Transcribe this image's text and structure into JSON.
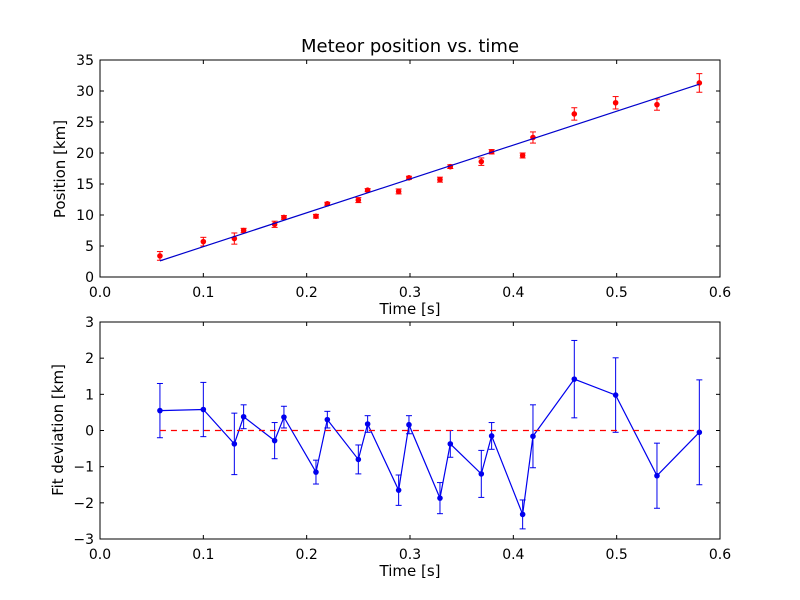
{
  "chart_data": [
    {
      "type": "scatter",
      "title": "Meteor position vs. time",
      "xlabel": "Time [s]",
      "ylabel": "Position [km]",
      "xlim": [
        0.0,
        0.6
      ],
      "ylim": [
        0,
        35
      ],
      "xticks": [
        0.0,
        0.1,
        0.2,
        0.3,
        0.4,
        0.5,
        0.6
      ],
      "xtick_labels": [
        "0.0",
        "0.1",
        "0.2",
        "0.3",
        "0.4",
        "0.5",
        "0.6"
      ],
      "yticks": [
        0,
        5,
        10,
        15,
        20,
        25,
        30,
        35
      ],
      "ytick_labels": [
        "0",
        "5",
        "10",
        "15",
        "20",
        "25",
        "30",
        "35"
      ],
      "grid": false,
      "series": [
        {
          "kind": "errorbar-points",
          "color": "#ff0000",
          "x": [
            0.058,
            0.1,
            0.13,
            0.139,
            0.169,
            0.178,
            0.209,
            0.22,
            0.25,
            0.259,
            0.289,
            0.299,
            0.329,
            0.339,
            0.369,
            0.379,
            0.409,
            0.419,
            0.459,
            0.499,
            0.539,
            0.58
          ],
          "y": [
            3.4,
            5.7,
            6.2,
            7.5,
            8.5,
            9.6,
            9.8,
            11.8,
            12.4,
            14.0,
            13.8,
            16.0,
            15.7,
            17.8,
            18.6,
            20.2,
            19.6,
            22.5,
            26.3,
            28.1,
            27.8,
            31.3
          ],
          "yerr": [
            0.7,
            0.7,
            0.9,
            0.35,
            0.5,
            0.3,
            0.3,
            0.25,
            0.4,
            0.25,
            0.4,
            0.25,
            0.4,
            0.3,
            0.6,
            0.35,
            0.4,
            0.9,
            1.0,
            1.0,
            0.9,
            1.5
          ]
        },
        {
          "kind": "line",
          "color": "#0000cc",
          "x": [
            0.058,
            0.58
          ],
          "y": [
            2.6,
            31.1
          ]
        }
      ]
    },
    {
      "type": "line",
      "title": "",
      "xlabel": "Time [s]",
      "ylabel": "Fit deviation [km]",
      "xlim": [
        0.0,
        0.6
      ],
      "ylim": [
        -3,
        3
      ],
      "xticks": [
        0.0,
        0.1,
        0.2,
        0.3,
        0.4,
        0.5,
        0.6
      ],
      "xtick_labels": [
        "0.0",
        "0.1",
        "0.2",
        "0.3",
        "0.4",
        "0.5",
        "0.6"
      ],
      "yticks": [
        -3,
        -2,
        -1,
        0,
        1,
        2,
        3
      ],
      "ytick_labels": [
        "−3",
        "−2",
        "−1",
        "0",
        "1",
        "2",
        "3"
      ],
      "grid": false,
      "series": [
        {
          "kind": "errorbar-line",
          "color": "#0000ee",
          "x": [
            0.058,
            0.1,
            0.13,
            0.139,
            0.169,
            0.178,
            0.209,
            0.22,
            0.25,
            0.259,
            0.289,
            0.299,
            0.329,
            0.339,
            0.369,
            0.379,
            0.409,
            0.419,
            0.459,
            0.499,
            0.539,
            0.58
          ],
          "y": [
            0.55,
            0.58,
            -0.37,
            0.38,
            -0.28,
            0.37,
            -1.15,
            0.3,
            -0.8,
            0.18,
            -1.65,
            0.16,
            -1.87,
            -0.37,
            -1.2,
            -0.15,
            -2.32,
            -0.16,
            1.42,
            0.98,
            -1.25,
            -0.05
          ],
          "yerr": [
            0.75,
            0.75,
            0.85,
            0.33,
            0.5,
            0.3,
            0.33,
            0.23,
            0.4,
            0.23,
            0.42,
            0.25,
            0.43,
            0.37,
            0.65,
            0.37,
            0.4,
            0.87,
            1.07,
            1.03,
            0.9,
            1.45
          ]
        },
        {
          "kind": "dashed-line",
          "color": "#ff0000",
          "x": [
            0.058,
            0.58
          ],
          "y": [
            0,
            0
          ]
        }
      ]
    }
  ]
}
